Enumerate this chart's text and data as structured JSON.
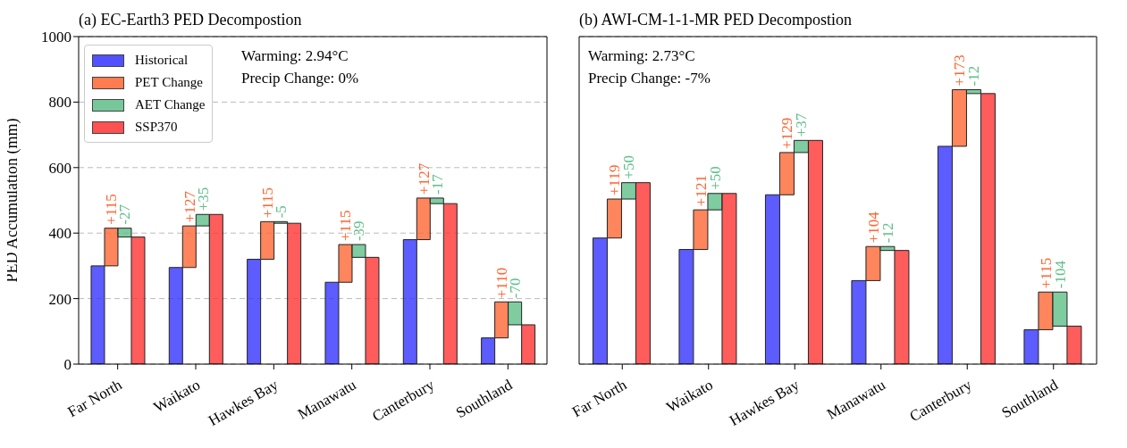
{
  "chart_data": [
    {
      "type": "bar",
      "title": "(a) EC-Earth3 PED Decompostion",
      "ylabel": "PED Accumulation (mm)",
      "categories": [
        "Far North",
        "Waikato",
        "Hawkes Bay",
        "Manawatu",
        "Canterbury",
        "Southland"
      ],
      "series": [
        {
          "name": "Historical",
          "color": "#3333ff",
          "values": [
            300,
            295,
            320,
            250,
            380,
            80
          ]
        },
        {
          "name": "PET Change",
          "color": "#ff6633",
          "base": [
            300,
            295,
            320,
            250,
            380,
            80
          ],
          "values": [
            115,
            127,
            115,
            115,
            127,
            110
          ],
          "value_labels": [
            "+115",
            "+127",
            "+115",
            "+115",
            "+127",
            "+110"
          ]
        },
        {
          "name": "AET Change",
          "color": "#5fbf8a",
          "base": [
            415,
            422,
            435,
            365,
            507,
            190
          ],
          "values": [
            -27,
            35,
            -5,
            -39,
            -17,
            -70
          ],
          "value_labels": [
            "-27",
            "+35",
            "-5",
            "-39",
            "-17",
            "-70"
          ]
        },
        {
          "name": "SSP370",
          "color": "#ff3333",
          "values": [
            388,
            457,
            430,
            326,
            490,
            120
          ]
        }
      ],
      "ylim": [
        0,
        1000
      ],
      "yticks": [
        0,
        200,
        400,
        600,
        800,
        1000
      ],
      "grid": "y",
      "legend": "top left",
      "annotations": [
        "Warming: 2.94°C",
        "Precip Change: 0%"
      ]
    },
    {
      "type": "bar",
      "title": "(b) AWI-CM-1-1-MR PED Decompostion",
      "categories": [
        "Far North",
        "Waikato",
        "Hawkes Bay",
        "Manawatu",
        "Canterbury",
        "Southland"
      ],
      "series": [
        {
          "color": "#3333ff",
          "values": [
            385,
            350,
            517,
            255,
            665,
            105
          ]
        },
        {
          "color": "#ff6633",
          "base": [
            385,
            350,
            517,
            255,
            665,
            105
          ],
          "values": [
            119,
            121,
            129,
            104,
            173,
            115
          ],
          "value_labels": [
            "+119",
            "+121",
            "+129",
            "+104",
            "+173",
            "+115"
          ]
        },
        {
          "color": "#5fbf8a",
          "base": [
            504,
            471,
            646,
            359,
            838,
            220
          ],
          "values": [
            50,
            50,
            37,
            -12,
            -12,
            -104
          ],
          "value_labels": [
            "+50",
            "+50",
            "+37",
            "-12",
            "-12",
            "-104"
          ]
        },
        {
          "color": "#ff3333",
          "values": [
            554,
            521,
            683,
            347,
            826,
            116
          ]
        }
      ],
      "ylim": [
        0,
        1000
      ],
      "yticks": [
        0,
        200,
        400,
        600,
        800,
        1000
      ],
      "grid": "y",
      "tick_labels": "x",
      "annotations": [
        "Warming: 2.73°C",
        "Precip Change: -7%"
      ]
    }
  ]
}
